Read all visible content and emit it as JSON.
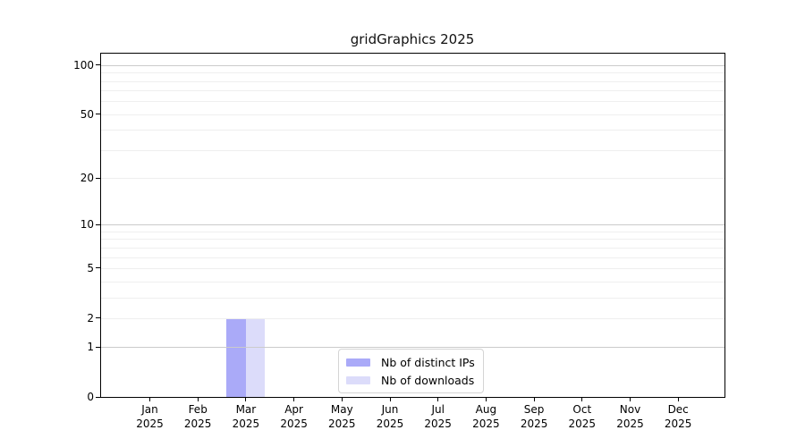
{
  "chart_data": {
    "type": "bar",
    "title": "gridGraphics 2025",
    "months": [
      "Jan",
      "Feb",
      "Mar",
      "Apr",
      "May",
      "Jun",
      "Jul",
      "Aug",
      "Sep",
      "Oct",
      "Nov",
      "Dec"
    ],
    "year": "2025",
    "series": [
      {
        "name": "Nb of distinct IPs",
        "color": "#AAAAF8",
        "values": [
          0,
          0,
          2,
          0,
          0,
          0,
          0,
          0,
          0,
          0,
          0,
          0
        ]
      },
      {
        "name": "Nb of downloads",
        "color": "#DCDCFA",
        "values": [
          0,
          0,
          2,
          0,
          0,
          0,
          0,
          0,
          0,
          0,
          0,
          0
        ]
      }
    ],
    "y_scale": "log1p",
    "ylim": [
      0,
      116
    ],
    "y_ticks": [
      100,
      50,
      20,
      10,
      5,
      2,
      1,
      0
    ],
    "y_tick_labels": [
      "100",
      "50",
      "20",
      "10",
      "5",
      "2",
      "1",
      "0"
    ],
    "gridlines_major": [
      100,
      10,
      1
    ],
    "gridlines_minor": [
      90,
      80,
      70,
      60,
      50,
      40,
      30,
      20,
      9,
      8,
      7,
      6,
      5,
      4,
      3,
      2
    ],
    "legend": {
      "position": "lower center"
    },
    "colors": {
      "grid_major": "#cbcbcb",
      "grid_minor": "#efefef",
      "axis": "#000000"
    }
  }
}
